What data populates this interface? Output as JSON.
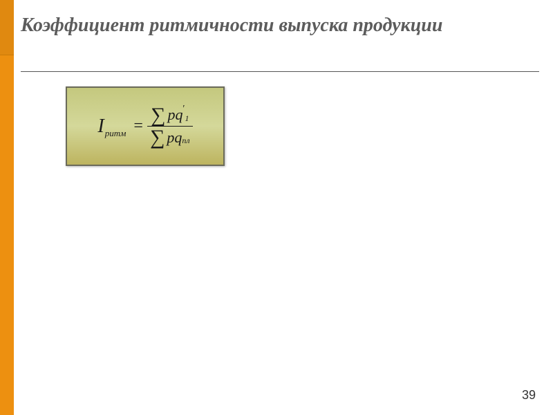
{
  "slide": {
    "title": "Коэффициент ритмичности выпуска продукции",
    "page_number": "39",
    "background_color": "#ffffff",
    "accent_color": "#ed9010",
    "accent_color_dark": "#e08910",
    "title_color": "#5c5c5c",
    "title_fontsize": 28,
    "title_italic": true,
    "divider_color": "#555555"
  },
  "formula": {
    "box_gradient_top": "#c4c87e",
    "box_gradient_mid": "#d4d89a",
    "box_gradient_bottom": "#bdb45f",
    "box_border_color": "#6b6b5a",
    "text_color": "#1a1a1a",
    "lhs_symbol": "I",
    "lhs_subscript": "ритм",
    "equals": "=",
    "numerator_sigma": "∑",
    "numerator_term": "pq",
    "numerator_sub": "1",
    "numerator_sup": "′",
    "denominator_sigma": "∑",
    "denominator_term": "pq",
    "denominator_sub": "пл"
  }
}
